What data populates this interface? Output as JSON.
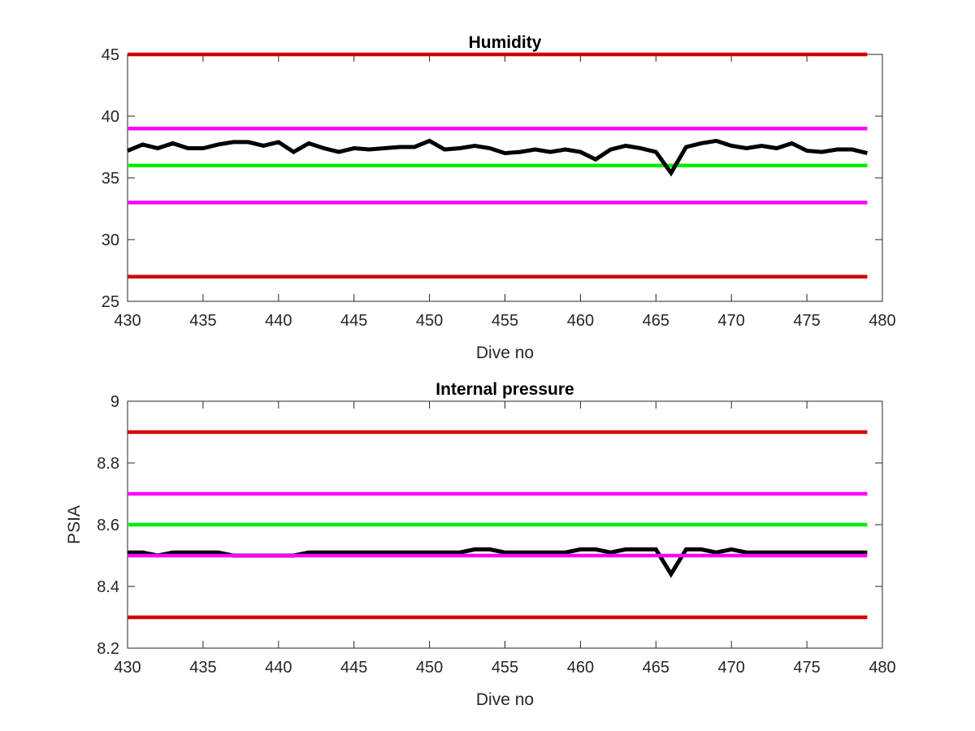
{
  "chart_data": [
    {
      "type": "line",
      "title": "Humidity",
      "xlabel": "Dive no",
      "ylabel": "",
      "xlim": [
        430,
        480
      ],
      "ylim": [
        25,
        45
      ],
      "xticks": [
        430,
        435,
        440,
        445,
        450,
        455,
        460,
        465,
        470,
        475,
        480
      ],
      "yticks": [
        25,
        30,
        35,
        40,
        45
      ],
      "grid": false,
      "colors": {
        "limit_outer": "#d40000",
        "limit_inner": "#ff00ff",
        "nominal": "#00ee00",
        "measured": "#000000"
      },
      "series": [
        {
          "role": "outer-limit-high",
          "color": "#d40000",
          "x": [
            430,
            479
          ],
          "values": [
            45,
            45
          ]
        },
        {
          "role": "inner-limit-high",
          "color": "#ff00ff",
          "x": [
            430,
            479
          ],
          "values": [
            39,
            39
          ]
        },
        {
          "role": "nominal",
          "color": "#00ee00",
          "x": [
            430,
            479
          ],
          "values": [
            36,
            36
          ]
        },
        {
          "role": "inner-limit-low",
          "color": "#ff00ff",
          "x": [
            430,
            479
          ],
          "values": [
            33,
            33
          ]
        },
        {
          "role": "outer-limit-low",
          "color": "#d40000",
          "x": [
            430,
            479
          ],
          "values": [
            27,
            27
          ]
        },
        {
          "role": "measured",
          "color": "#000000",
          "x": [
            430,
            431,
            432,
            433,
            434,
            435,
            436,
            437,
            438,
            439,
            440,
            441,
            442,
            443,
            444,
            445,
            446,
            447,
            448,
            449,
            450,
            451,
            452,
            453,
            454,
            455,
            456,
            457,
            458,
            459,
            460,
            461,
            462,
            463,
            464,
            465,
            466,
            467,
            468,
            469,
            470,
            471,
            472,
            473,
            474,
            475,
            476,
            477,
            478,
            479
          ],
          "values": [
            37.2,
            37.7,
            37.4,
            37.8,
            37.4,
            37.4,
            37.7,
            37.9,
            37.9,
            37.6,
            37.9,
            37.1,
            37.8,
            37.4,
            37.1,
            37.4,
            37.3,
            37.4,
            37.5,
            37.5,
            38.0,
            37.3,
            37.4,
            37.6,
            37.4,
            37.0,
            37.1,
            37.3,
            37.1,
            37.3,
            37.1,
            36.5,
            37.3,
            37.6,
            37.4,
            37.1,
            35.4,
            37.5,
            37.8,
            38.0,
            37.6,
            37.4,
            37.6,
            37.4,
            37.8,
            37.2,
            37.1,
            37.3,
            37.3,
            37.0
          ]
        }
      ]
    },
    {
      "type": "line",
      "title": "Internal pressure",
      "xlabel": "Dive no",
      "ylabel": "PSIA",
      "xlim": [
        430,
        480
      ],
      "ylim": [
        8.2,
        9
      ],
      "xticks": [
        430,
        435,
        440,
        445,
        450,
        455,
        460,
        465,
        470,
        475,
        480
      ],
      "yticks": [
        8.2,
        8.4,
        8.6,
        8.8,
        9
      ],
      "grid": false,
      "colors": {
        "limit_outer": "#d40000",
        "limit_inner": "#ff00ff",
        "nominal": "#00ee00",
        "measured": "#000000"
      },
      "series": [
        {
          "role": "outer-limit-high",
          "color": "#d40000",
          "x": [
            430,
            479
          ],
          "values": [
            8.9,
            8.9
          ]
        },
        {
          "role": "inner-limit-high",
          "color": "#ff00ff",
          "x": [
            430,
            479
          ],
          "values": [
            8.7,
            8.7
          ]
        },
        {
          "role": "nominal",
          "color": "#00ee00",
          "x": [
            430,
            479
          ],
          "values": [
            8.6,
            8.6
          ]
        },
        {
          "role": "measured",
          "color": "#000000",
          "x": [
            430,
            431,
            432,
            433,
            434,
            435,
            436,
            437,
            438,
            439,
            440,
            441,
            442,
            443,
            444,
            445,
            446,
            447,
            448,
            449,
            450,
            451,
            452,
            453,
            454,
            455,
            456,
            457,
            458,
            459,
            460,
            461,
            462,
            463,
            464,
            465,
            466,
            467,
            468,
            469,
            470,
            471,
            472,
            473,
            474,
            475,
            476,
            477,
            478,
            479
          ],
          "values": [
            8.51,
            8.51,
            8.5,
            8.51,
            8.51,
            8.51,
            8.51,
            8.5,
            8.5,
            8.5,
            8.5,
            8.5,
            8.51,
            8.51,
            8.51,
            8.51,
            8.51,
            8.51,
            8.51,
            8.51,
            8.51,
            8.51,
            8.51,
            8.52,
            8.52,
            8.51,
            8.51,
            8.51,
            8.51,
            8.51,
            8.52,
            8.52,
            8.51,
            8.52,
            8.52,
            8.52,
            8.44,
            8.52,
            8.52,
            8.51,
            8.52,
            8.51,
            8.51,
            8.51,
            8.51,
            8.51,
            8.51,
            8.51,
            8.51,
            8.51
          ]
        },
        {
          "role": "inner-limit-low",
          "color": "#ff00ff",
          "x": [
            430,
            479
          ],
          "values": [
            8.5,
            8.5
          ]
        },
        {
          "role": "outer-limit-low",
          "color": "#d40000",
          "x": [
            430,
            479
          ],
          "values": [
            8.3,
            8.3
          ]
        }
      ]
    }
  ]
}
